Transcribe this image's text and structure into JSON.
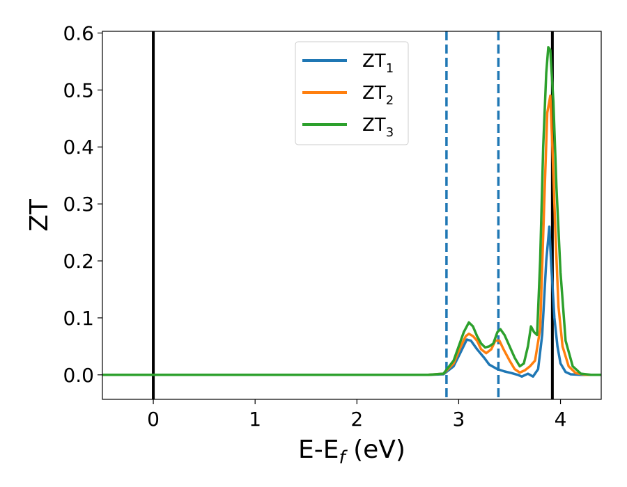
{
  "chart_data": {
    "type": "line",
    "xlabel": "E-E",
    "xlabel_subscript": "f",
    "xlabel_unit": " (eV)",
    "ylabel": "ZT",
    "xlim": [
      -0.5,
      4.4
    ],
    "ylim": [
      -0.043,
      0.603
    ],
    "xticks": [
      0,
      1,
      2,
      3,
      4
    ],
    "xtick_labels": [
      "0",
      "1",
      "2",
      "3",
      "4"
    ],
    "yticks": [
      0.0,
      0.1,
      0.2,
      0.3,
      0.4,
      0.5,
      0.6
    ],
    "ytick_labels": [
      "0.0",
      "0.1",
      "0.2",
      "0.3",
      "0.4",
      "0.5",
      "0.6"
    ],
    "grid": false,
    "legend": {
      "position": "top-center",
      "entries": [
        {
          "label": "ZT",
          "subscript": "1",
          "color": "#1f77b4"
        },
        {
          "label": "ZT",
          "subscript": "2",
          "color": "#ff7f0e"
        },
        {
          "label": "ZT",
          "subscript": "3",
          "color": "#2ca02c"
        }
      ]
    },
    "vertical_lines": [
      {
        "x": 0.0,
        "style": "solid",
        "color": "#000000"
      },
      {
        "x": 3.92,
        "style": "solid",
        "color": "#000000"
      },
      {
        "x": 2.88,
        "style": "dashed",
        "color": "#1f77b4"
      },
      {
        "x": 3.39,
        "style": "dashed",
        "color": "#1f77b4"
      }
    ],
    "series": [
      {
        "name": "ZT1",
        "color": "#1f77b4",
        "x": [
          -0.5,
          2.7,
          2.85,
          2.95,
          3.02,
          3.08,
          3.12,
          3.18,
          3.25,
          3.3,
          3.38,
          3.45,
          3.52,
          3.58,
          3.62,
          3.68,
          3.73,
          3.78,
          3.82,
          3.86,
          3.89,
          3.91,
          3.94,
          3.97,
          4.0,
          4.05,
          4.1,
          4.2,
          4.4
        ],
        "y": [
          0,
          0,
          0.001,
          0.015,
          0.04,
          0.062,
          0.06,
          0.045,
          0.03,
          0.018,
          0.01,
          0.006,
          0.003,
          0.0,
          -0.003,
          0.002,
          -0.003,
          0.01,
          0.07,
          0.2,
          0.26,
          0.19,
          0.1,
          0.05,
          0.02,
          0.005,
          0.001,
          0,
          0
        ]
      },
      {
        "name": "ZT2",
        "color": "#ff7f0e",
        "x": [
          -0.5,
          2.7,
          2.85,
          2.95,
          3.02,
          3.07,
          3.1,
          3.14,
          3.18,
          3.22,
          3.27,
          3.32,
          3.36,
          3.4,
          3.44,
          3.5,
          3.55,
          3.6,
          3.65,
          3.7,
          3.75,
          3.8,
          3.84,
          3.87,
          3.9,
          3.92,
          3.95,
          3.98,
          4.02,
          4.08,
          4.15,
          4.25,
          4.4
        ],
        "y": [
          0,
          0,
          0.002,
          0.02,
          0.05,
          0.068,
          0.072,
          0.068,
          0.06,
          0.045,
          0.038,
          0.045,
          0.06,
          0.06,
          0.045,
          0.025,
          0.01,
          0.004,
          0.008,
          0.015,
          0.025,
          0.08,
          0.3,
          0.46,
          0.49,
          0.4,
          0.25,
          0.12,
          0.05,
          0.015,
          0.003,
          0,
          0
        ]
      },
      {
        "name": "ZT3",
        "color": "#2ca02c",
        "x": [
          -0.5,
          2.7,
          2.85,
          2.95,
          3.0,
          3.05,
          3.1,
          3.14,
          3.18,
          3.22,
          3.26,
          3.3,
          3.34,
          3.38,
          3.41,
          3.45,
          3.5,
          3.55,
          3.6,
          3.64,
          3.68,
          3.71,
          3.74,
          3.77,
          3.8,
          3.83,
          3.86,
          3.88,
          3.9,
          3.93,
          3.96,
          4.0,
          4.05,
          4.12,
          4.2,
          4.3,
          4.4
        ],
        "y": [
          0,
          0,
          0.002,
          0.025,
          0.05,
          0.075,
          0.092,
          0.085,
          0.068,
          0.055,
          0.048,
          0.05,
          0.055,
          0.075,
          0.08,
          0.07,
          0.05,
          0.03,
          0.015,
          0.02,
          0.05,
          0.085,
          0.075,
          0.07,
          0.2,
          0.4,
          0.53,
          0.575,
          0.57,
          0.48,
          0.33,
          0.18,
          0.06,
          0.015,
          0.002,
          0,
          0
        ]
      }
    ]
  }
}
